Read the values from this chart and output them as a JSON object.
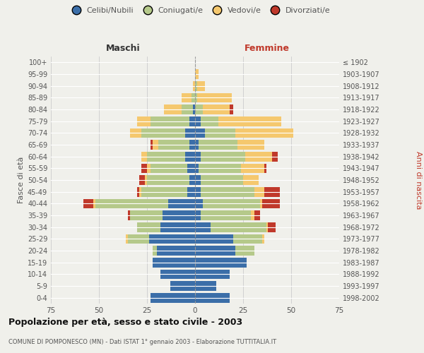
{
  "age_groups": [
    "0-4",
    "5-9",
    "10-14",
    "15-19",
    "20-24",
    "25-29",
    "30-34",
    "35-39",
    "40-44",
    "45-49",
    "50-54",
    "55-59",
    "60-64",
    "65-69",
    "70-74",
    "75-79",
    "80-84",
    "85-89",
    "90-94",
    "95-99",
    "100+"
  ],
  "birth_years": [
    "1998-2002",
    "1993-1997",
    "1988-1992",
    "1983-1987",
    "1978-1982",
    "1973-1977",
    "1968-1972",
    "1963-1967",
    "1958-1962",
    "1953-1957",
    "1948-1952",
    "1943-1947",
    "1938-1942",
    "1933-1937",
    "1928-1932",
    "1923-1927",
    "1918-1922",
    "1913-1917",
    "1908-1912",
    "1903-1907",
    "≤ 1902"
  ],
  "colors": {
    "celibi": "#3b6ea8",
    "coniugati": "#b5c98a",
    "vedovi": "#f5c86e",
    "divorziati": "#c0392b"
  },
  "males": {
    "celibi": [
      23,
      13,
      18,
      22,
      20,
      24,
      18,
      17,
      14,
      4,
      3,
      4,
      5,
      3,
      5,
      3,
      1,
      0,
      0,
      0,
      0
    ],
    "coniugati": [
      0,
      0,
      0,
      0,
      2,
      11,
      12,
      17,
      38,
      24,
      22,
      19,
      20,
      16,
      23,
      20,
      6,
      2,
      0,
      0,
      0
    ],
    "vedovi": [
      0,
      0,
      0,
      0,
      0,
      1,
      0,
      0,
      1,
      1,
      1,
      2,
      3,
      3,
      6,
      7,
      9,
      5,
      1,
      0,
      0
    ],
    "divorziati": [
      0,
      0,
      0,
      0,
      0,
      0,
      0,
      1,
      5,
      1,
      3,
      3,
      0,
      1,
      0,
      0,
      0,
      0,
      0,
      0,
      0
    ]
  },
  "females": {
    "celibi": [
      18,
      11,
      18,
      27,
      21,
      20,
      8,
      3,
      4,
      3,
      3,
      2,
      3,
      2,
      5,
      3,
      0,
      0,
      0,
      0,
      0
    ],
    "coniugati": [
      0,
      0,
      0,
      0,
      10,
      15,
      29,
      26,
      30,
      28,
      22,
      22,
      23,
      20,
      16,
      9,
      4,
      1,
      1,
      0,
      0
    ],
    "vedovi": [
      0,
      0,
      0,
      0,
      0,
      1,
      1,
      2,
      1,
      5,
      8,
      12,
      14,
      14,
      30,
      33,
      14,
      18,
      4,
      2,
      0
    ],
    "divorziati": [
      0,
      0,
      0,
      0,
      0,
      0,
      4,
      3,
      9,
      8,
      0,
      1,
      3,
      0,
      0,
      0,
      2,
      0,
      0,
      0,
      0
    ]
  },
  "xlim": 75,
  "title": "Popolazione per età, sesso e stato civile - 2003",
  "subtitle": "COMUNE DI POMPONESCO (MN) - Dati ISTAT 1° gennaio 2003 - Elaborazione TUTTITALIA.IT",
  "ylabel_left": "Fasce di età",
  "ylabel_right": "Anni di nascita",
  "xlabel_left": "Maschi",
  "xlabel_right": "Femmine",
  "bg_color": "#f0f0eb",
  "grid_color": "#cccccc",
  "bar_height": 0.82
}
